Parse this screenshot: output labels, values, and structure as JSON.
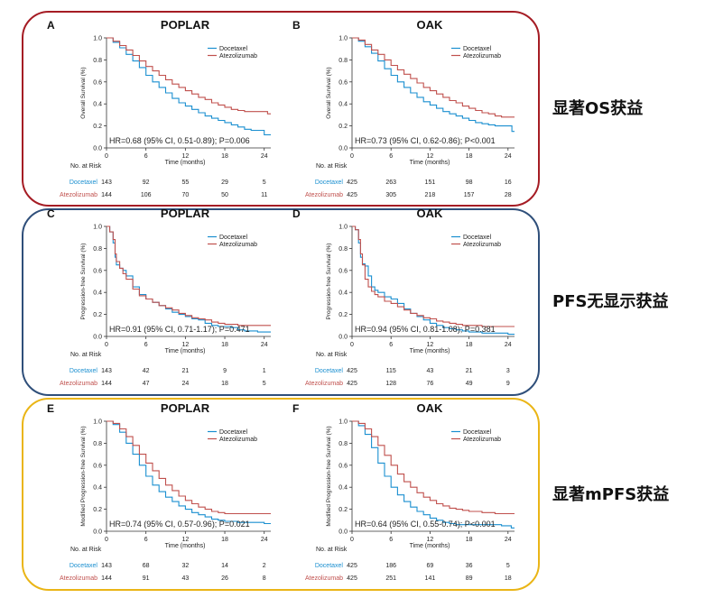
{
  "colors": {
    "docetaxel": "#1a8fd0",
    "atezolizumab": "#c0504d",
    "os_frame": "#a51c24",
    "pfs_frame": "#2f4f7a",
    "mpfs_frame": "#eab516"
  },
  "annotations": {
    "os": "显著OS获益",
    "pfs": "PFS无显示获益",
    "mpfs": "显著mPFS获益"
  },
  "chart_data": [
    {
      "type": "line",
      "panel_letter": "A",
      "title": "POPLAR",
      "ylabel": "Overall Survival (%)",
      "xlabel": "Time (months)",
      "xlim": [
        0,
        25
      ],
      "ylim": [
        0,
        1
      ],
      "xticks": [
        "0",
        "6",
        "12",
        "18",
        "24"
      ],
      "yticks": [
        "0.0",
        "0.2",
        "0.4",
        "0.6",
        "0.8",
        "1.0"
      ],
      "legend": [
        "Docetaxel",
        "Atezolizumab"
      ],
      "hr_text": "HR=0.68 (95% CI, 0.51-0.89); P=0.006",
      "series": [
        {
          "name": "Docetaxel",
          "x": [
            0,
            1,
            2,
            3,
            4,
            5,
            6,
            7,
            8,
            9,
            10,
            11,
            12,
            13,
            14,
            15,
            16,
            17,
            18,
            19,
            20,
            21,
            22,
            23,
            24,
            24.5,
            25
          ],
          "y": [
            1,
            0.96,
            0.91,
            0.85,
            0.79,
            0.73,
            0.66,
            0.6,
            0.55,
            0.5,
            0.45,
            0.41,
            0.38,
            0.35,
            0.32,
            0.29,
            0.27,
            0.25,
            0.23,
            0.21,
            0.19,
            0.17,
            0.16,
            0.16,
            0.12,
            0.12,
            0.12
          ]
        },
        {
          "name": "Atezolizumab",
          "x": [
            0,
            1,
            2,
            3,
            4,
            5,
            6,
            7,
            8,
            9,
            10,
            11,
            12,
            13,
            14,
            15,
            16,
            17,
            18,
            19,
            20,
            21,
            22,
            23,
            24,
            24.5,
            25
          ],
          "y": [
            1,
            0.97,
            0.93,
            0.89,
            0.84,
            0.79,
            0.74,
            0.7,
            0.66,
            0.62,
            0.58,
            0.55,
            0.52,
            0.49,
            0.46,
            0.44,
            0.41,
            0.39,
            0.37,
            0.35,
            0.34,
            0.33,
            0.33,
            0.33,
            0.33,
            0.31,
            0.31
          ]
        }
      ],
      "risk_label": "No. at Risk",
      "risk": [
        {
          "name": "Docetaxel",
          "values": [
            "143",
            "92",
            "55",
            "29",
            "5"
          ]
        },
        {
          "name": "Atezolizumab",
          "values": [
            "144",
            "106",
            "70",
            "50",
            "11"
          ]
        }
      ]
    },
    {
      "type": "line",
      "panel_letter": "B",
      "title": "OAK",
      "ylabel": "Overall Survival (%)",
      "xlabel": "Time (months)",
      "xlim": [
        0,
        25
      ],
      "ylim": [
        0,
        1
      ],
      "xticks": [
        "0",
        "6",
        "12",
        "18",
        "24"
      ],
      "yticks": [
        "0.0",
        "0.2",
        "0.4",
        "0.6",
        "0.8",
        "1.0"
      ],
      "legend": [
        "Docetaxel",
        "Atezolizumab"
      ],
      "hr_text": "HR=0.73 (95% CI, 0.62-0.86); P<0.001",
      "series": [
        {
          "name": "Docetaxel",
          "x": [
            0,
            1,
            2,
            3,
            4,
            5,
            6,
            7,
            8,
            9,
            10,
            11,
            12,
            13,
            14,
            15,
            16,
            17,
            18,
            19,
            20,
            21,
            22,
            23,
            24,
            24.6,
            25
          ],
          "y": [
            1,
            0.97,
            0.92,
            0.86,
            0.79,
            0.72,
            0.66,
            0.6,
            0.55,
            0.5,
            0.46,
            0.42,
            0.39,
            0.36,
            0.33,
            0.31,
            0.29,
            0.27,
            0.25,
            0.23,
            0.22,
            0.21,
            0.2,
            0.2,
            0.2,
            0.15,
            0.15
          ]
        },
        {
          "name": "Atezolizumab",
          "x": [
            0,
            1,
            2,
            3,
            4,
            5,
            6,
            7,
            8,
            9,
            10,
            11,
            12,
            13,
            14,
            15,
            16,
            17,
            18,
            19,
            20,
            21,
            22,
            23,
            24,
            24.5,
            25
          ],
          "y": [
            1,
            0.98,
            0.94,
            0.89,
            0.85,
            0.8,
            0.75,
            0.71,
            0.67,
            0.63,
            0.59,
            0.55,
            0.52,
            0.49,
            0.46,
            0.43,
            0.41,
            0.38,
            0.36,
            0.34,
            0.32,
            0.31,
            0.29,
            0.28,
            0.28,
            0.28,
            0.28
          ]
        }
      ],
      "risk_label": "No. at Risk",
      "risk": [
        {
          "name": "Docetaxel",
          "values": [
            "425",
            "263",
            "151",
            "98",
            "16"
          ]
        },
        {
          "name": "Atezolizumab",
          "values": [
            "425",
            "305",
            "218",
            "157",
            "28"
          ]
        }
      ]
    },
    {
      "type": "line",
      "panel_letter": "C",
      "title": "POPLAR",
      "ylabel": "Progression-free Survival (%)",
      "xlabel": "Time (months)",
      "xlim": [
        0,
        25
      ],
      "ylim": [
        0,
        1
      ],
      "xticks": [
        "0",
        "6",
        "12",
        "18",
        "24"
      ],
      "yticks": [
        "0.0",
        "0.2",
        "0.4",
        "0.6",
        "0.8",
        "1.0"
      ],
      "legend": [
        "Docetaxel",
        "Atezolizumab"
      ],
      "hr_text": "HR=0.91 (95% CI, 0.71-1.17); P=0.471",
      "series": [
        {
          "name": "Docetaxel",
          "x": [
            0,
            0.5,
            1,
            1.3,
            1.5,
            2,
            2.5,
            3,
            4,
            5,
            6,
            7,
            8,
            9,
            10,
            11,
            12,
            13,
            14,
            15,
            16,
            17,
            18,
            19,
            20,
            21,
            22,
            23,
            24,
            25
          ],
          "y": [
            1,
            0.95,
            0.85,
            0.72,
            0.65,
            0.62,
            0.6,
            0.55,
            0.45,
            0.38,
            0.34,
            0.31,
            0.28,
            0.25,
            0.22,
            0.2,
            0.18,
            0.16,
            0.15,
            0.12,
            0.1,
            0.09,
            0.09,
            0.08,
            0.06,
            0.05,
            0.05,
            0.04,
            0.04,
            0.04
          ]
        },
        {
          "name": "Atezolizumab",
          "x": [
            0,
            0.5,
            1,
            1.3,
            1.5,
            2,
            2.5,
            3,
            4,
            5,
            6,
            7,
            8,
            9,
            10,
            11,
            12,
            13,
            14,
            15,
            16,
            17,
            18,
            19,
            20,
            21,
            22,
            23,
            24,
            25
          ],
          "y": [
            1,
            0.95,
            0.88,
            0.75,
            0.68,
            0.62,
            0.57,
            0.52,
            0.43,
            0.37,
            0.34,
            0.31,
            0.28,
            0.26,
            0.24,
            0.21,
            0.19,
            0.17,
            0.16,
            0.15,
            0.13,
            0.12,
            0.11,
            0.11,
            0.1,
            0.1,
            0.1,
            0.1,
            0.1,
            0.1
          ]
        }
      ],
      "risk_label": "No. at Risk",
      "risk": [
        {
          "name": "Docetaxel",
          "values": [
            "143",
            "42",
            "21",
            "9",
            "1"
          ]
        },
        {
          "name": "Atezolizumab",
          "values": [
            "144",
            "47",
            "24",
            "18",
            "5"
          ]
        }
      ]
    },
    {
      "type": "line",
      "panel_letter": "D",
      "title": "OAK",
      "ylabel": "Progression-free Survival (%)",
      "xlabel": "Time (months)",
      "xlim": [
        0,
        25
      ],
      "ylim": [
        0,
        1
      ],
      "xticks": [
        "0",
        "6",
        "12",
        "18",
        "24"
      ],
      "yticks": [
        "0.0",
        "0.2",
        "0.4",
        "0.6",
        "0.8",
        "1.0"
      ],
      "legend": [
        "Docetaxel",
        "Atezolizumab"
      ],
      "hr_text": "HR=0.94 (95% CI, 0.81-1.08); P=0.381",
      "series": [
        {
          "name": "Docetaxel",
          "x": [
            0,
            0.5,
            1,
            1.3,
            1.6,
            2,
            2.5,
            3,
            3.5,
            4,
            5,
            6,
            7,
            8,
            9,
            10,
            11,
            12,
            13,
            14,
            15,
            16,
            17,
            18,
            19,
            20,
            21,
            22,
            23,
            24,
            25
          ],
          "y": [
            1,
            0.97,
            0.85,
            0.72,
            0.66,
            0.64,
            0.55,
            0.45,
            0.42,
            0.4,
            0.36,
            0.34,
            0.3,
            0.25,
            0.21,
            0.18,
            0.15,
            0.12,
            0.1,
            0.08,
            0.07,
            0.06,
            0.05,
            0.04,
            0.04,
            0.03,
            0.03,
            0.03,
            0.03,
            0.02,
            0.02
          ]
        },
        {
          "name": "Atezolizumab",
          "x": [
            0,
            0.5,
            1,
            1.3,
            1.6,
            2,
            2.5,
            3,
            3.5,
            4,
            5,
            6,
            7,
            8,
            9,
            10,
            11,
            12,
            13,
            14,
            15,
            16,
            17,
            18,
            19,
            20,
            21,
            22,
            23,
            24,
            25
          ],
          "y": [
            1,
            0.97,
            0.88,
            0.75,
            0.65,
            0.52,
            0.45,
            0.41,
            0.38,
            0.36,
            0.32,
            0.3,
            0.27,
            0.24,
            0.21,
            0.19,
            0.17,
            0.16,
            0.14,
            0.13,
            0.12,
            0.11,
            0.1,
            0.1,
            0.1,
            0.09,
            0.09,
            0.09,
            0.09,
            0.09,
            0.09
          ]
        }
      ],
      "risk_label": "No. at Risk",
      "risk": [
        {
          "name": "Docetaxel",
          "values": [
            "425",
            "115",
            "43",
            "21",
            "3"
          ]
        },
        {
          "name": "Atezolizumab",
          "values": [
            "425",
            "128",
            "76",
            "49",
            "9"
          ]
        }
      ]
    },
    {
      "type": "line",
      "panel_letter": "E",
      "title": "POPLAR",
      "ylabel": "Modified Progression-free Survival (%)",
      "xlabel": "Time (months)",
      "xlim": [
        0,
        25
      ],
      "ylim": [
        0,
        1
      ],
      "xticks": [
        "0",
        "6",
        "12",
        "18",
        "24"
      ],
      "yticks": [
        "0.0",
        "0.2",
        "0.4",
        "0.6",
        "0.8",
        "1.0"
      ],
      "legend": [
        "Docetaxel",
        "Atezolizumab"
      ],
      "hr_text": "HR=0.74 (95% CI, 0.57-0.96); P=0.021",
      "series": [
        {
          "name": "Docetaxel",
          "x": [
            0,
            1,
            2,
            3,
            4,
            5,
            6,
            7,
            8,
            9,
            10,
            11,
            12,
            13,
            14,
            15,
            16,
            17,
            18,
            19,
            20,
            21,
            22,
            23,
            24,
            25
          ],
          "y": [
            1,
            0.97,
            0.9,
            0.8,
            0.7,
            0.6,
            0.5,
            0.42,
            0.36,
            0.31,
            0.27,
            0.23,
            0.2,
            0.17,
            0.15,
            0.13,
            0.11,
            0.1,
            0.09,
            0.09,
            0.08,
            0.08,
            0.08,
            0.08,
            0.07,
            0.07
          ]
        },
        {
          "name": "Atezolizumab",
          "x": [
            0,
            1,
            2,
            3,
            4,
            5,
            6,
            7,
            8,
            9,
            10,
            11,
            12,
            13,
            14,
            15,
            16,
            17,
            18,
            19,
            20,
            21,
            22,
            23,
            24,
            25
          ],
          "y": [
            1,
            0.98,
            0.93,
            0.86,
            0.78,
            0.7,
            0.62,
            0.55,
            0.48,
            0.42,
            0.37,
            0.32,
            0.28,
            0.25,
            0.22,
            0.2,
            0.18,
            0.17,
            0.16,
            0.16,
            0.16,
            0.16,
            0.16,
            0.16,
            0.16,
            0.16
          ]
        }
      ],
      "risk_label": "No. at Risk",
      "risk": [
        {
          "name": "Docetaxel",
          "values": [
            "143",
            "68",
            "32",
            "14",
            "2"
          ]
        },
        {
          "name": "Atezolizumab",
          "values": [
            "144",
            "91",
            "43",
            "26",
            "8"
          ]
        }
      ]
    },
    {
      "type": "line",
      "panel_letter": "F",
      "title": "OAK",
      "ylabel": "Modified Progression-free Survival (%)",
      "xlabel": "Time (months)",
      "xlim": [
        0,
        25
      ],
      "ylim": [
        0,
        1
      ],
      "xticks": [
        "0",
        "6",
        "12",
        "18",
        "24"
      ],
      "yticks": [
        "0.0",
        "0.2",
        "0.4",
        "0.6",
        "0.8",
        "1.0"
      ],
      "legend": [
        "Docetaxel",
        "Atezolizumab"
      ],
      "hr_text": "HR=0.64 (95% CI, 0.55-0.74); P<0.001",
      "series": [
        {
          "name": "Docetaxel",
          "x": [
            0,
            1,
            2,
            3,
            4,
            5,
            6,
            7,
            8,
            9,
            10,
            11,
            12,
            13,
            14,
            15,
            16,
            17,
            18,
            19,
            20,
            21,
            22,
            23,
            24,
            24.5,
            25
          ],
          "y": [
            1,
            0.96,
            0.88,
            0.76,
            0.62,
            0.5,
            0.4,
            0.33,
            0.27,
            0.22,
            0.18,
            0.15,
            0.12,
            0.1,
            0.08,
            0.07,
            0.06,
            0.06,
            0.06,
            0.06,
            0.06,
            0.06,
            0.06,
            0.05,
            0.05,
            0.03,
            0.03
          ]
        },
        {
          "name": "Atezolizumab",
          "x": [
            0,
            1,
            2,
            3,
            4,
            5,
            6,
            7,
            8,
            9,
            10,
            11,
            12,
            13,
            14,
            15,
            16,
            17,
            18,
            19,
            20,
            21,
            22,
            23,
            24,
            25
          ],
          "y": [
            1,
            0.98,
            0.93,
            0.86,
            0.78,
            0.69,
            0.6,
            0.52,
            0.45,
            0.4,
            0.35,
            0.31,
            0.28,
            0.25,
            0.23,
            0.21,
            0.2,
            0.19,
            0.18,
            0.18,
            0.17,
            0.17,
            0.16,
            0.16,
            0.16,
            0.16
          ]
        }
      ],
      "risk_label": "No. at Risk",
      "risk": [
        {
          "name": "Docetaxel",
          "values": [
            "425",
            "186",
            "69",
            "36",
            "5"
          ]
        },
        {
          "name": "Atezolizumab",
          "values": [
            "425",
            "251",
            "141",
            "89",
            "18"
          ]
        }
      ]
    }
  ]
}
